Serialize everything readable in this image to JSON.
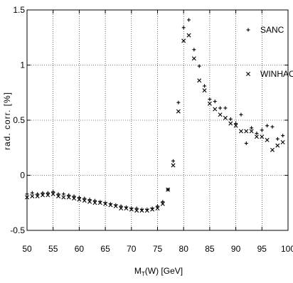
{
  "chart_data": {
    "type": "scatter",
    "title": "",
    "xlabel_main": "M",
    "xlabel_sub": "T",
    "xlabel_rest": "(W) [GeV]",
    "ylabel": "rad. corr. [%]",
    "xlim": [
      50,
      100
    ],
    "ylim": [
      -0.5,
      1.5
    ],
    "xticks": [
      50,
      55,
      60,
      65,
      70,
      75,
      80,
      85,
      90,
      95,
      100
    ],
    "yticks": [
      -0.5,
      0,
      0.5,
      1,
      1.5
    ],
    "xtick_labels": [
      "50",
      "55",
      "60",
      "65",
      "70",
      "75",
      "80",
      "85",
      "90",
      "95",
      "100"
    ],
    "ytick_labels": [
      "-0.5",
      "0",
      "0.5",
      "1",
      "1.5"
    ],
    "grid": true,
    "legend_position": "top-right",
    "series": [
      {
        "name": "SANC",
        "marker": "plus",
        "x": [
          50,
          51,
          52,
          53,
          54,
          55,
          56,
          57,
          58,
          59,
          60,
          61,
          62,
          63,
          64,
          65,
          66,
          67,
          68,
          69,
          70,
          71,
          72,
          73,
          74,
          75,
          76,
          77,
          78,
          79,
          80,
          81,
          82,
          83,
          84,
          85,
          86,
          87,
          88,
          89,
          90,
          91,
          92,
          93,
          94,
          95,
          96,
          97,
          98,
          99
        ],
        "y": [
          -0.17,
          -0.16,
          -0.17,
          -0.16,
          -0.16,
          -0.15,
          -0.17,
          -0.17,
          -0.18,
          -0.19,
          -0.2,
          -0.21,
          -0.22,
          -0.23,
          -0.24,
          -0.25,
          -0.26,
          -0.27,
          -0.28,
          -0.29,
          -0.3,
          -0.3,
          -0.31,
          -0.31,
          -0.3,
          -0.28,
          -0.24,
          -0.13,
          0.13,
          0.66,
          1.34,
          1.41,
          1.14,
          0.99,
          0.81,
          0.69,
          0.67,
          0.61,
          0.61,
          0.51,
          0.47,
          0.55,
          0.29,
          0.43,
          0.38,
          0.41,
          0.45,
          0.44,
          0.33,
          0.36
        ]
      },
      {
        "name": "WINHAC",
        "marker": "x",
        "x": [
          50,
          51,
          52,
          53,
          54,
          55,
          56,
          57,
          58,
          59,
          60,
          61,
          62,
          63,
          64,
          65,
          66,
          67,
          68,
          69,
          70,
          71,
          72,
          73,
          74,
          75,
          76,
          77,
          78,
          79,
          80,
          81,
          82,
          83,
          84,
          85,
          86,
          87,
          88,
          89,
          90,
          91,
          92,
          93,
          94,
          95,
          96,
          97,
          98,
          99
        ],
        "y": [
          -0.2,
          -0.19,
          -0.19,
          -0.18,
          -0.18,
          -0.17,
          -0.19,
          -0.2,
          -0.2,
          -0.21,
          -0.22,
          -0.23,
          -0.24,
          -0.25,
          -0.25,
          -0.26,
          -0.27,
          -0.28,
          -0.3,
          -0.3,
          -0.31,
          -0.32,
          -0.32,
          -0.32,
          -0.31,
          -0.3,
          -0.26,
          -0.13,
          0.09,
          0.58,
          1.22,
          1.27,
          1.06,
          0.86,
          0.77,
          0.65,
          0.6,
          0.55,
          0.52,
          0.47,
          0.45,
          0.4,
          0.4,
          0.4,
          0.35,
          0.35,
          0.32,
          0.23,
          0.27,
          0.3
        ]
      }
    ]
  }
}
